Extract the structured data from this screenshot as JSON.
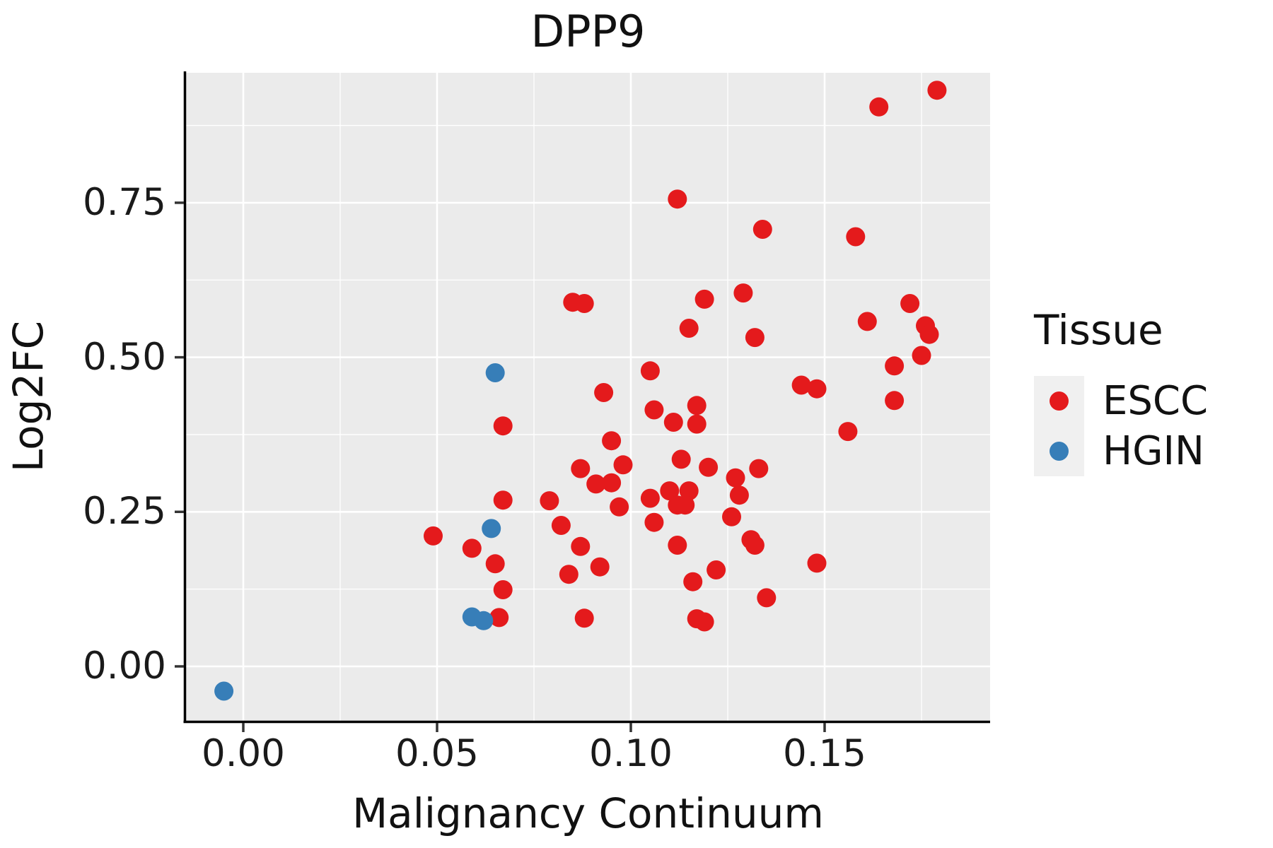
{
  "title": "DPP9",
  "axes": {
    "x": {
      "label": "Malignancy Continuum",
      "tick_labels": [
        "0.00",
        "0.05",
        "0.10",
        "0.15"
      ],
      "tick_values": [
        0.0,
        0.05,
        0.1,
        0.15
      ],
      "minor_values": [
        0.025,
        0.075,
        0.125,
        0.175
      ]
    },
    "y": {
      "label": "Log2FC",
      "tick_labels": [
        "0.00",
        "0.25",
        "0.50",
        "0.75"
      ],
      "tick_values": [
        0.0,
        0.25,
        0.5,
        0.75
      ],
      "minor_values": [
        0.125,
        0.375,
        0.625,
        0.875
      ]
    }
  },
  "legend": {
    "title": "Tissue",
    "entries": [
      {
        "label": "ESCC",
        "color": "#E41A1C"
      },
      {
        "label": "HGIN",
        "color": "#377EB8"
      }
    ]
  },
  "colors": {
    "panel_background": "#EBEBEB",
    "gridline": "#FFFFFF",
    "axis_line": "#000000",
    "tick_mark": "#333333",
    "escc": "#E41A1C",
    "hgin": "#377EB8",
    "legend_key_background": "#F0F0F0"
  },
  "chart_data": {
    "type": "scatter",
    "title": "DPP9",
    "xlabel": "Malignancy Continuum",
    "ylabel": "Log2FC",
    "xlim": [
      -0.0148,
      0.1927
    ],
    "ylim": [
      -0.088,
      0.96
    ],
    "grid": "major+minor",
    "legend_position": "right",
    "legend_title": "Tissue",
    "point_radius_px": 13.5,
    "series": [
      {
        "name": "ESCC",
        "color": "#E41A1C",
        "points": [
          [
            0.164,
            0.905
          ],
          [
            0.179,
            0.932
          ],
          [
            0.112,
            0.756
          ],
          [
            0.134,
            0.707
          ],
          [
            0.158,
            0.695
          ],
          [
            0.129,
            0.604
          ],
          [
            0.119,
            0.594
          ],
          [
            0.085,
            0.589
          ],
          [
            0.088,
            0.587
          ],
          [
            0.172,
            0.587
          ],
          [
            0.161,
            0.558
          ],
          [
            0.115,
            0.547
          ],
          [
            0.176,
            0.551
          ],
          [
            0.177,
            0.537
          ],
          [
            0.132,
            0.532
          ],
          [
            0.175,
            0.503
          ],
          [
            0.168,
            0.486
          ],
          [
            0.105,
            0.478
          ],
          [
            0.144,
            0.455
          ],
          [
            0.148,
            0.449
          ],
          [
            0.093,
            0.443
          ],
          [
            0.168,
            0.43
          ],
          [
            0.117,
            0.422
          ],
          [
            0.106,
            0.415
          ],
          [
            0.111,
            0.395
          ],
          [
            0.117,
            0.392
          ],
          [
            0.067,
            0.389
          ],
          [
            0.156,
            0.38
          ],
          [
            0.095,
            0.365
          ],
          [
            0.113,
            0.335
          ],
          [
            0.098,
            0.326
          ],
          [
            0.087,
            0.32
          ],
          [
            0.133,
            0.32
          ],
          [
            0.12,
            0.322
          ],
          [
            0.127,
            0.305
          ],
          [
            0.095,
            0.297
          ],
          [
            0.091,
            0.295
          ],
          [
            0.11,
            0.284
          ],
          [
            0.115,
            0.284
          ],
          [
            0.128,
            0.277
          ],
          [
            0.105,
            0.272
          ],
          [
            0.079,
            0.268
          ],
          [
            0.067,
            0.269
          ],
          [
            0.112,
            0.261
          ],
          [
            0.114,
            0.261
          ],
          [
            0.097,
            0.258
          ],
          [
            0.126,
            0.242
          ],
          [
            0.106,
            0.233
          ],
          [
            0.082,
            0.228
          ],
          [
            0.049,
            0.211
          ],
          [
            0.131,
            0.205
          ],
          [
            0.132,
            0.196
          ],
          [
            0.112,
            0.196
          ],
          [
            0.059,
            0.191
          ],
          [
            0.087,
            0.194
          ],
          [
            0.148,
            0.167
          ],
          [
            0.065,
            0.166
          ],
          [
            0.092,
            0.161
          ],
          [
            0.122,
            0.156
          ],
          [
            0.084,
            0.149
          ],
          [
            0.116,
            0.137
          ],
          [
            0.067,
            0.124
          ],
          [
            0.135,
            0.111
          ],
          [
            0.088,
            0.078
          ],
          [
            0.066,
            0.079
          ],
          [
            0.117,
            0.077
          ],
          [
            0.119,
            0.072
          ]
        ]
      },
      {
        "name": "HGIN",
        "color": "#377EB8",
        "points": [
          [
            0.065,
            0.475
          ],
          [
            0.064,
            0.223
          ],
          [
            0.059,
            0.08
          ],
          [
            0.062,
            0.074
          ],
          [
            -0.005,
            -0.04
          ]
        ]
      }
    ]
  }
}
